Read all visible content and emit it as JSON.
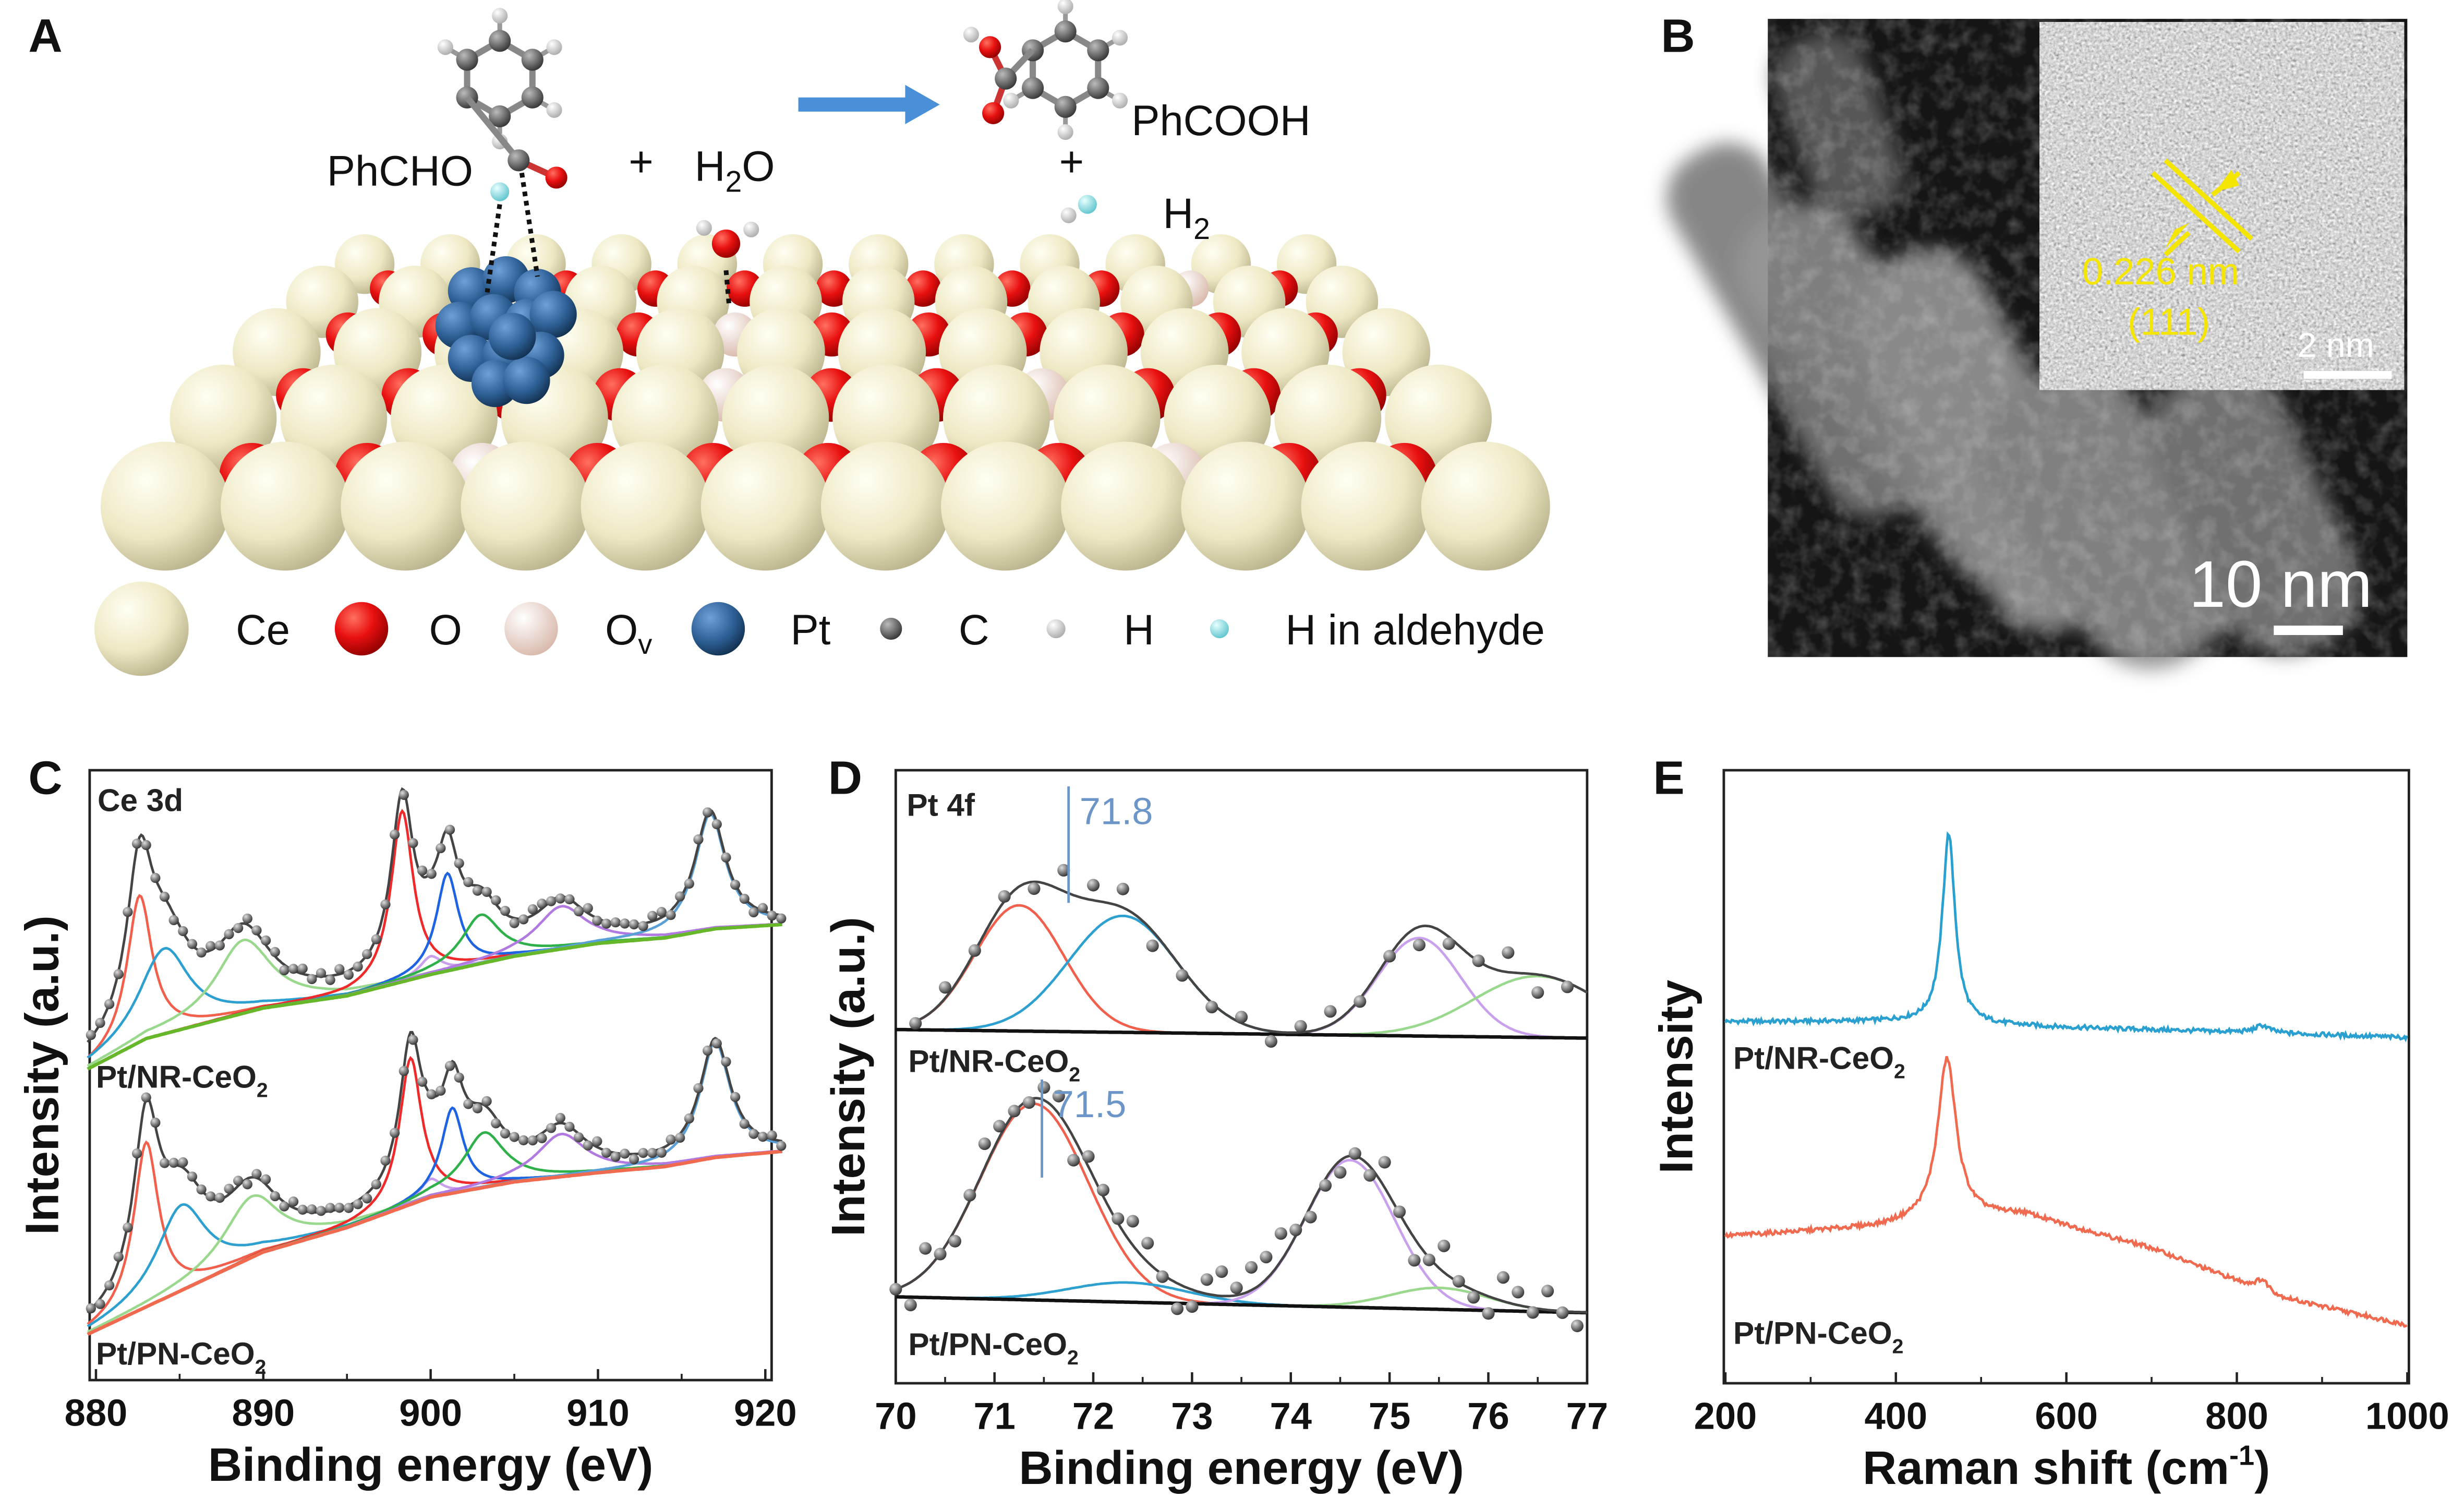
{
  "panels": {
    "a": {
      "letter": "A",
      "reactant": "PhCHO",
      "plus1": "+",
      "water": {
        "main": "H",
        "sub": "2",
        "tail": "O"
      },
      "product": "PhCOOH",
      "plus2": "+",
      "hydrogen": {
        "main": "H",
        "sub": "2"
      },
      "arrow_color": "#4a90d9",
      "legend": [
        {
          "label": "Ce",
          "color": "#f3efcf"
        },
        {
          "label": "O",
          "color": "#e01010"
        },
        {
          "label": "O",
          "sub": "v",
          "color": "#f4dcd2"
        },
        {
          "label": "Pt",
          "color": "#2d5f95"
        },
        {
          "label": "C",
          "color": "#666666"
        },
        {
          "label": "H",
          "color": "#f4f4f4"
        },
        {
          "label": "H in aldehyde",
          "color": "#9fe0e6"
        }
      ]
    },
    "b": {
      "letter": "B",
      "lattice_spacing": "0.226 nm",
      "plane": "(111)",
      "inset_scale": "2 nm",
      "main_scale": "10 nm",
      "annotation_color": "#f4e600"
    },
    "c": {
      "letter": "C"
    },
    "d": {
      "letter": "D"
    },
    "e": {
      "letter": "E"
    }
  },
  "chart_data": [
    {
      "type": "line",
      "panel": "C",
      "title": "Ce 3d",
      "xlabel": "Binding energy (eV)",
      "ylabel": "Intensity (a.u.)",
      "xlim": [
        879.5,
        921
      ],
      "ylim": [
        0,
        100
      ],
      "x_ticks": [
        "880",
        "890",
        "900",
        "910",
        "920"
      ],
      "x_tick_values": [
        880,
        890,
        900,
        910,
        920
      ],
      "grid": false,
      "samples": [
        {
          "name": "Pt/NR-CeO",
          "name_sub": "2",
          "baseline": [
            [
              879.5,
              51
            ],
            [
              883,
              56
            ],
            [
              890,
              61
            ],
            [
              895,
              63
            ],
            [
              900,
              66.5
            ],
            [
              905,
              69.5
            ],
            [
              910,
              71.6
            ],
            [
              914,
              72.5
            ],
            [
              917,
              74
            ],
            [
              921,
              74.7
            ]
          ],
          "baseline_color": "#66b82a",
          "components": [
            {
              "center": 882.6,
              "height": 24,
              "width": 0.9,
              "color": "#f0604c"
            },
            {
              "center": 884.1,
              "height": 14,
              "width": 1.8,
              "color": "#2ea0d0"
            },
            {
              "center": 888.8,
              "height": 12,
              "width": 2.0,
              "color": "#9ad88e"
            },
            {
              "center": 898.3,
              "height": 28,
              "width": 0.8,
              "color": "#ee2a2a"
            },
            {
              "center": 900.0,
              "height": 3,
              "width": 0.8,
              "color": "#c9a0ec"
            },
            {
              "center": 901.0,
              "height": 16,
              "width": 0.8,
              "color": "#1e64e0"
            },
            {
              "center": 903.0,
              "height": 8,
              "width": 1.4,
              "color": "#2fb04a"
            },
            {
              "center": 907.8,
              "height": 7,
              "width": 1.8,
              "color": "#b07ae0"
            },
            {
              "center": 916.7,
              "height": 19,
              "width": 1.1,
              "color": "#5aa0d6"
            }
          ]
        },
        {
          "name": "Pt/PN-CeO",
          "name_sub": "2",
          "baseline": [
            [
              879.5,
              7.5
            ],
            [
              883,
              12
            ],
            [
              890,
              21
            ],
            [
              895,
              25
            ],
            [
              900,
              30
            ],
            [
              905,
              32.5
            ],
            [
              910,
              34
            ],
            [
              914,
              35
            ],
            [
              917,
              36.5
            ],
            [
              921,
              37.5
            ]
          ],
          "baseline_color": "#f06a50",
          "components": [
            {
              "center": 883.0,
              "height": 27,
              "width": 0.9,
              "color": "#f0604c"
            },
            {
              "center": 885.1,
              "height": 14,
              "width": 1.8,
              "color": "#2ea0d0"
            },
            {
              "center": 889.3,
              "height": 10,
              "width": 2.0,
              "color": "#9ad88e"
            },
            {
              "center": 898.8,
              "height": 24,
              "width": 0.8,
              "color": "#ee2a2a"
            },
            {
              "center": 900.0,
              "height": 3,
              "width": 0.8,
              "color": "#c9a0ec"
            },
            {
              "center": 901.3,
              "height": 14,
              "width": 0.8,
              "color": "#1e64e0"
            },
            {
              "center": 903.2,
              "height": 9,
              "width": 1.5,
              "color": "#2fb04a"
            },
            {
              "center": 907.8,
              "height": 7,
              "width": 1.8,
              "color": "#b07ae0"
            },
            {
              "center": 917.0,
              "height": 19,
              "width": 1.1,
              "color": "#5aa0d6"
            }
          ]
        }
      ]
    },
    {
      "type": "line",
      "panel": "D",
      "title": "Pt 4f",
      "xlabel": "Binding energy (eV)",
      "ylabel": "Intensity (a.u.)",
      "xlim": [
        70,
        77
      ],
      "ylim": [
        0,
        100
      ],
      "x_ticks": [
        "70",
        "71",
        "72",
        "73",
        "74",
        "75",
        "76",
        "77"
      ],
      "x_tick_values": [
        70,
        71,
        72,
        73,
        74,
        75,
        76,
        77
      ],
      "grid": false,
      "samples": [
        {
          "name": "Pt/NR-CeO",
          "name_sub": "2",
          "baseline": [
            [
              70,
              57.7
            ],
            [
              77,
              56.3
            ]
          ],
          "baseline_color": "#111111",
          "marker": {
            "value": 71.75,
            "label": "71.8"
          },
          "components": [
            {
              "center": 71.25,
              "height": 20.5,
              "width": 0.45,
              "color": "#f0604c"
            },
            {
              "center": 72.3,
              "height": 19,
              "width": 0.55,
              "color": "#2ea0d0"
            },
            {
              "center": 75.3,
              "height": 16,
              "width": 0.42,
              "color": "#c9a0ec"
            },
            {
              "center": 76.5,
              "height": 10,
              "width": 0.65,
              "color": "#9ad88e"
            }
          ]
        },
        {
          "name": "Pt/PN-CeO",
          "name_sub": "2",
          "baseline": [
            [
              70,
              14.1
            ],
            [
              77,
              11.5
            ]
          ],
          "baseline_color": "#111111",
          "marker": {
            "value": 71.48,
            "label": "71.5"
          },
          "components": [
            {
              "center": 71.4,
              "height": 32,
              "width": 0.55,
              "color": "#f0604c"
            },
            {
              "center": 72.35,
              "height": 3.2,
              "width": 0.6,
              "color": "#2ea0d0"
            },
            {
              "center": 74.6,
              "height": 24,
              "width": 0.45,
              "color": "#c9a0ec"
            },
            {
              "center": 75.5,
              "height": 3.5,
              "width": 0.5,
              "color": "#9ad88e"
            }
          ]
        }
      ],
      "marker_color": "#6c96c8"
    },
    {
      "type": "line",
      "panel": "E",
      "xlabel": "Raman shift (cm",
      "xlabel_sup": "-1",
      "xlabel_close": ")",
      "ylabel": "Intensity",
      "xlim": [
        200,
        1000
      ],
      "ylim": [
        0,
        100
      ],
      "x_ticks": [
        "200",
        "400",
        "600",
        "800",
        "1000"
      ],
      "x_tick_values": [
        200,
        400,
        600,
        800,
        1000
      ],
      "grid": false,
      "series": [
        {
          "name": "Pt/NR-CeO",
          "name_sub": "2",
          "color": "#2aa0d0",
          "baseline": [
            [
              200,
              59
            ],
            [
              400,
              59
            ],
            [
              600,
              58
            ],
            [
              800,
              57.3
            ],
            [
              1000,
              56.4
            ]
          ],
          "peaks": [
            {
              "center": 462,
              "height": 31,
              "width": 9
            },
            {
              "center": 830,
              "height": 1.2,
              "width": 10
            }
          ]
        },
        {
          "name": "Pt/PN-CeO",
          "name_sub": "2",
          "color": "#f06a50",
          "baseline": [
            [
              200,
              24
            ],
            [
              380,
              25.5
            ],
            [
              450,
              27
            ],
            [
              550,
              27.5
            ],
            [
              700,
              22
            ],
            [
              850,
              14
            ],
            [
              1000,
              9.5
            ]
          ],
          "peaks": [
            {
              "center": 460,
              "height": 26,
              "width": 13
            },
            {
              "center": 830,
              "height": 1.8,
              "width": 10
            }
          ]
        }
      ]
    }
  ]
}
